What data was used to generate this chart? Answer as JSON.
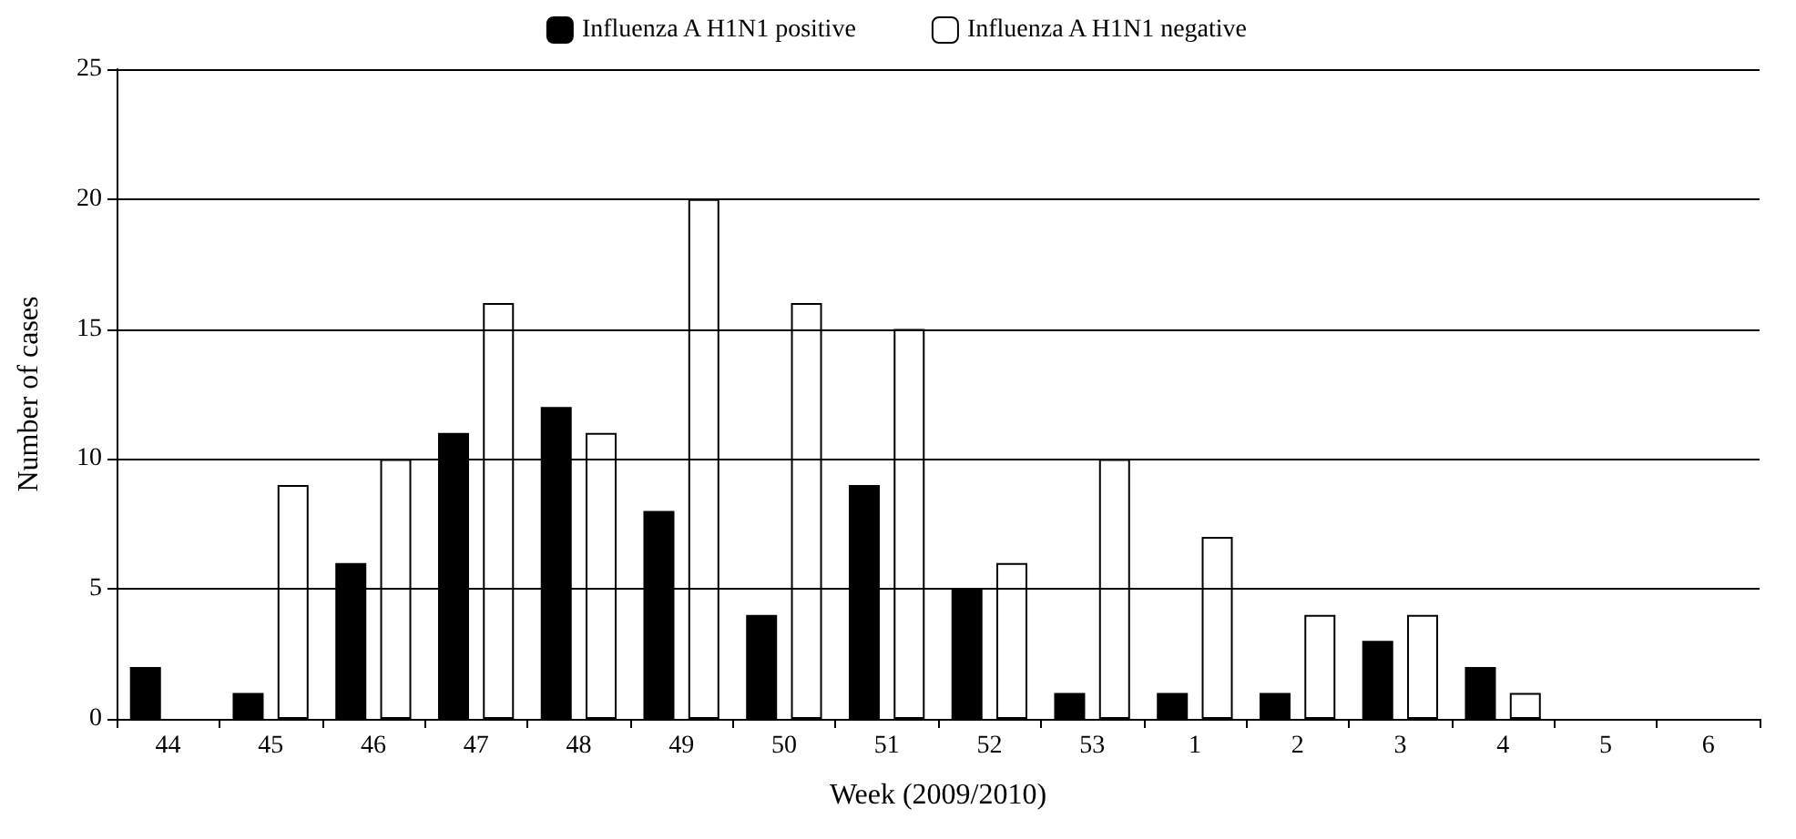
{
  "chart_data": {
    "type": "bar",
    "xlabel": "Week (2009/2010)",
    "ylabel": "Number of cases",
    "categories": [
      "44",
      "45",
      "46",
      "47",
      "48",
      "49",
      "50",
      "51",
      "52",
      "53",
      "1",
      "2",
      "3",
      "4",
      "5",
      "6"
    ],
    "series": [
      {
        "name": "Influenza A H1N1 positive",
        "color": "#000000",
        "values": [
          2,
          1,
          6,
          11,
          12,
          8,
          4,
          9,
          5,
          1,
          1,
          1,
          3,
          2,
          0,
          0
        ]
      },
      {
        "name": "Influenza A H1N1 negative",
        "color": "#ffffff",
        "values": [
          0,
          9,
          10,
          16,
          11,
          20,
          16,
          15,
          6,
          10,
          7,
          4,
          4,
          1,
          0,
          0
        ]
      }
    ],
    "ylim": [
      0,
      25
    ],
    "yticks": [
      0,
      5,
      10,
      15,
      20,
      25
    ],
    "grid": "y",
    "legend": "top"
  }
}
